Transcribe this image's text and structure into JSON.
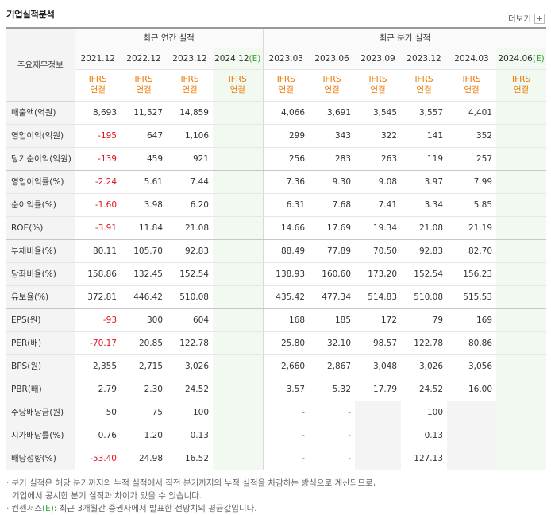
{
  "header": {
    "title": "기업실적분석",
    "more_label": "더보기"
  },
  "table": {
    "corner_label": "주요재무정보",
    "annual_group": "최근 연간 실적",
    "quarter_group": "최근 분기 실적",
    "annual_periods": [
      {
        "label": "2021.12",
        "est": false
      },
      {
        "label": "2022.12",
        "est": false
      },
      {
        "label": "2023.12",
        "est": false
      },
      {
        "label": "2024.12",
        "est": true
      }
    ],
    "quarter_periods": [
      {
        "label": "2023.03",
        "est": false
      },
      {
        "label": "2023.06",
        "est": false
      },
      {
        "label": "2023.09",
        "est": false
      },
      {
        "label": "2023.12",
        "est": false
      },
      {
        "label": "2024.03",
        "est": false
      },
      {
        "label": "2024.06",
        "est": true
      }
    ],
    "est_mark": "(E)",
    "ifrs_line1": "IFRS",
    "ifrs_line2": "연결",
    "rows": [
      {
        "label": "매출액(억원)",
        "values": [
          "8,693",
          "11,527",
          "14,859",
          "",
          "4,066",
          "3,691",
          "3,545",
          "3,557",
          "4,401",
          ""
        ]
      },
      {
        "label": "영업이익(억원)",
        "values": [
          "-195",
          "647",
          "1,106",
          "",
          "299",
          "343",
          "322",
          "141",
          "352",
          ""
        ]
      },
      {
        "label": "당기순이익(억원)",
        "values": [
          "-139",
          "459",
          "921",
          "",
          "256",
          "283",
          "263",
          "119",
          "257",
          ""
        ]
      },
      {
        "label": "영업이익률(%)",
        "values": [
          "-2.24",
          "5.61",
          "7.44",
          "",
          "7.36",
          "9.30",
          "9.08",
          "3.97",
          "7.99",
          ""
        ]
      },
      {
        "label": "순이익률(%)",
        "values": [
          "-1.60",
          "3.98",
          "6.20",
          "",
          "6.31",
          "7.68",
          "7.41",
          "3.34",
          "5.85",
          ""
        ]
      },
      {
        "label": "ROE(%)",
        "values": [
          "-3.91",
          "11.84",
          "21.08",
          "",
          "14.66",
          "17.69",
          "19.34",
          "21.08",
          "21.19",
          ""
        ]
      },
      {
        "label": "부채비율(%)",
        "values": [
          "80.11",
          "105.70",
          "92.83",
          "",
          "88.49",
          "77.89",
          "70.50",
          "92.83",
          "82.70",
          ""
        ]
      },
      {
        "label": "당좌비율(%)",
        "values": [
          "158.86",
          "132.45",
          "152.54",
          "",
          "138.93",
          "160.60",
          "173.20",
          "152.54",
          "156.23",
          ""
        ]
      },
      {
        "label": "유보율(%)",
        "values": [
          "372.81",
          "446.42",
          "510.08",
          "",
          "435.42",
          "477.34",
          "514.83",
          "510.08",
          "515.53",
          ""
        ]
      },
      {
        "label": "EPS(원)",
        "values": [
          "-93",
          "300",
          "604",
          "",
          "168",
          "185",
          "172",
          "79",
          "169",
          ""
        ]
      },
      {
        "label": "PER(배)",
        "values": [
          "-70.17",
          "20.85",
          "122.78",
          "",
          "25.80",
          "32.10",
          "98.57",
          "122.78",
          "80.86",
          ""
        ]
      },
      {
        "label": "BPS(원)",
        "values": [
          "2,355",
          "2,715",
          "3,026",
          "",
          "2,660",
          "2,867",
          "3,048",
          "3,026",
          "3,056",
          ""
        ]
      },
      {
        "label": "PBR(배)",
        "values": [
          "2.79",
          "2.30",
          "24.52",
          "",
          "3.57",
          "5.32",
          "17.79",
          "24.52",
          "16.00",
          ""
        ]
      },
      {
        "label": "주당배당금(원)",
        "values": [
          "50",
          "75",
          "100",
          "",
          "-",
          "-",
          "",
          "100",
          "",
          ""
        ]
      },
      {
        "label": "시가배당률(%)",
        "values": [
          "0.76",
          "1.20",
          "0.13",
          "",
          "-",
          "-",
          "",
          "0.13",
          "",
          ""
        ]
      },
      {
        "label": "배당성향(%)",
        "values": [
          "-53.40",
          "24.98",
          "16.52",
          "",
          "-",
          "-",
          "",
          "127.13",
          "",
          ""
        ]
      }
    ]
  },
  "notes": {
    "line1": "분기 실적은 해당 분기까지의 누적 실적에서 직전 분기까지의 누적 실적을 차감하는 방식으로 계산되므로,",
    "line2": "기업에서 공시한 분기 실적과 차이가 있을 수 있습니다.",
    "line3_prefix": "컨센서스",
    "line3_mark": "(E)",
    "line3_suffix": ": 최근 3개월간 증권사에서 발표한 전망치의 평균값입니다."
  },
  "colors": {
    "negative": "#e0141e",
    "ifrs": "#ee7700",
    "estimate_bg": "#f1f9f1",
    "estimate_mark": "#37a137"
  }
}
